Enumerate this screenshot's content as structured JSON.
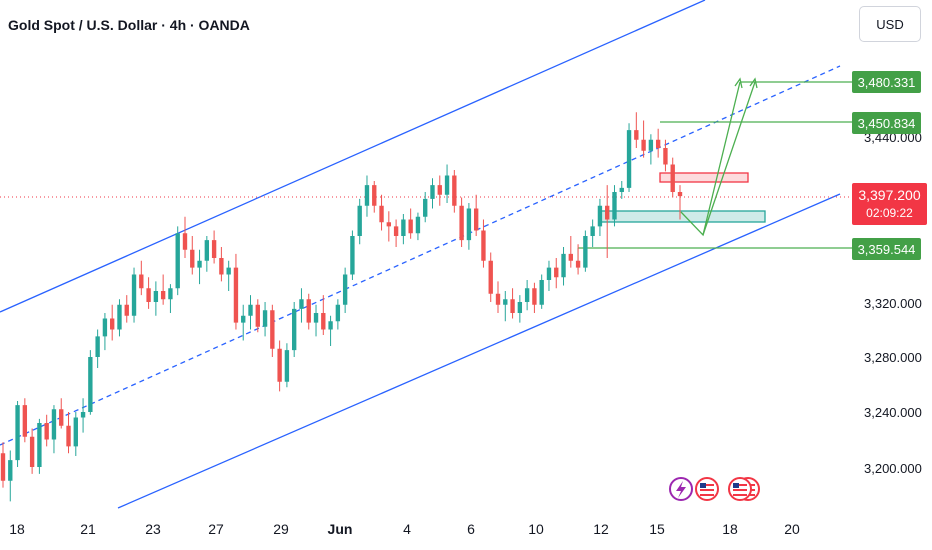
{
  "header": {
    "title": "Gold Spot / U.S. Dollar · 4h · OANDA",
    "currency_button": "USD"
  },
  "price_axis": {
    "ticks": [
      "3,440.000",
      "3,320.000",
      "3,280.000",
      "3,240.000",
      "3,200.000"
    ],
    "levels": [
      "3,480.331",
      "3,450.834",
      "3,359.544"
    ],
    "current_price": "3,397.200",
    "countdown": "02:09:22"
  },
  "time_axis": {
    "ticks": [
      "18",
      "21",
      "23",
      "27",
      "29",
      "Jun",
      "4",
      "6",
      "10",
      "12",
      "15",
      "18",
      "20"
    ]
  },
  "colors": {
    "bull": "#26a69a",
    "bear": "#ef5350",
    "channel": "#2962ff",
    "target": "#4caf50",
    "current": "#f23645"
  },
  "events": [
    "lightning-icon",
    "us-flag-icon",
    "us-flag-icon",
    "us-flag-icon"
  ],
  "chart_data": {
    "type": "candlestick",
    "symbol": "XAUUSD",
    "timeframe": "4h",
    "ylim": [
      3160,
      3520
    ],
    "levels": [
      3480.331,
      3450.834,
      3359.544
    ],
    "current": 3397.2,
    "ohlc": [
      [
        3210,
        3218,
        3185,
        3190
      ],
      [
        3190,
        3212,
        3175,
        3205
      ],
      [
        3205,
        3248,
        3200,
        3245
      ],
      [
        3245,
        3250,
        3218,
        3222
      ],
      [
        3222,
        3228,
        3195,
        3200
      ],
      [
        3200,
        3235,
        3195,
        3232
      ],
      [
        3232,
        3238,
        3215,
        3220
      ],
      [
        3220,
        3245,
        3210,
        3242
      ],
      [
        3242,
        3250,
        3228,
        3230
      ],
      [
        3230,
        3240,
        3210,
        3215
      ],
      [
        3215,
        3240,
        3208,
        3236
      ],
      [
        3236,
        3250,
        3225,
        3240
      ],
      [
        3240,
        3285,
        3238,
        3280
      ],
      [
        3280,
        3300,
        3272,
        3295
      ],
      [
        3295,
        3312,
        3285,
        3308
      ],
      [
        3308,
        3318,
        3292,
        3300
      ],
      [
        3300,
        3322,
        3295,
        3318
      ],
      [
        3318,
        3325,
        3305,
        3310
      ],
      [
        3310,
        3345,
        3305,
        3340
      ],
      [
        3340,
        3350,
        3325,
        3330
      ],
      [
        3330,
        3338,
        3315,
        3320
      ],
      [
        3320,
        3335,
        3310,
        3328
      ],
      [
        3328,
        3340,
        3318,
        3322
      ],
      [
        3322,
        3333,
        3312,
        3330
      ],
      [
        3330,
        3375,
        3325,
        3370
      ],
      [
        3370,
        3382,
        3352,
        3358
      ],
      [
        3358,
        3368,
        3340,
        3345
      ],
      [
        3345,
        3358,
        3333,
        3350
      ],
      [
        3350,
        3368,
        3342,
        3365
      ],
      [
        3365,
        3372,
        3348,
        3352
      ],
      [
        3352,
        3360,
        3335,
        3340
      ],
      [
        3340,
        3350,
        3328,
        3345
      ],
      [
        3345,
        3355,
        3300,
        3305
      ],
      [
        3305,
        3318,
        3292,
        3310
      ],
      [
        3310,
        3325,
        3300,
        3318
      ],
      [
        3318,
        3322,
        3298,
        3302
      ],
      [
        3302,
        3320,
        3295,
        3314
      ],
      [
        3314,
        3318,
        3280,
        3286
      ],
      [
        3286,
        3292,
        3255,
        3262
      ],
      [
        3262,
        3290,
        3258,
        3285
      ],
      [
        3285,
        3320,
        3280,
        3315
      ],
      [
        3315,
        3330,
        3305,
        3322
      ],
      [
        3322,
        3326,
        3300,
        3305
      ],
      [
        3305,
        3318,
        3295,
        3312
      ],
      [
        3312,
        3325,
        3296,
        3300
      ],
      [
        3300,
        3310,
        3288,
        3306
      ],
      [
        3306,
        3322,
        3300,
        3318
      ],
      [
        3318,
        3345,
        3312,
        3340
      ],
      [
        3340,
        3372,
        3336,
        3368
      ],
      [
        3368,
        3395,
        3362,
        3390
      ],
      [
        3390,
        3412,
        3382,
        3405
      ],
      [
        3405,
        3408,
        3385,
        3390
      ],
      [
        3390,
        3398,
        3372,
        3378
      ],
      [
        3378,
        3386,
        3364,
        3375
      ],
      [
        3375,
        3380,
        3360,
        3368
      ],
      [
        3368,
        3384,
        3362,
        3380
      ],
      [
        3380,
        3388,
        3366,
        3370
      ],
      [
        3370,
        3385,
        3365,
        3382
      ],
      [
        3382,
        3400,
        3378,
        3395
      ],
      [
        3395,
        3410,
        3388,
        3405
      ],
      [
        3405,
        3412,
        3390,
        3398
      ],
      [
        3398,
        3420,
        3392,
        3412
      ],
      [
        3412,
        3416,
        3385,
        3390
      ],
      [
        3390,
        3396,
        3360,
        3365
      ],
      [
        3365,
        3392,
        3358,
        3388
      ],
      [
        3388,
        3398,
        3368,
        3372
      ],
      [
        3372,
        3380,
        3345,
        3350
      ],
      [
        3350,
        3356,
        3320,
        3326
      ],
      [
        3326,
        3335,
        3312,
        3318
      ],
      [
        3318,
        3328,
        3306,
        3322
      ],
      [
        3322,
        3330,
        3308,
        3312
      ],
      [
        3312,
        3325,
        3305,
        3320
      ],
      [
        3320,
        3336,
        3314,
        3330
      ],
      [
        3330,
        3334,
        3312,
        3318
      ],
      [
        3318,
        3340,
        3315,
        3336
      ],
      [
        3336,
        3350,
        3328,
        3345
      ],
      [
        3345,
        3352,
        3330,
        3338
      ],
      [
        3338,
        3360,
        3332,
        3355
      ],
      [
        3355,
        3368,
        3345,
        3350
      ],
      [
        3350,
        3362,
        3340,
        3345
      ],
      [
        3345,
        3372,
        3342,
        3368
      ],
      [
        3368,
        3380,
        3360,
        3375
      ],
      [
        3375,
        3395,
        3368,
        3390
      ],
      [
        3390,
        3405,
        3352,
        3380
      ],
      [
        3380,
        3405,
        3375,
        3400
      ],
      [
        3400,
        3408,
        3395,
        3403
      ],
      [
        3403,
        3450,
        3400,
        3445
      ],
      [
        3445,
        3458,
        3432,
        3438
      ],
      [
        3438,
        3452,
        3425,
        3430
      ],
      [
        3430,
        3442,
        3420,
        3438
      ],
      [
        3438,
        3446,
        3425,
        3432
      ],
      [
        3432,
        3438,
        3415,
        3420
      ],
      [
        3420,
        3425,
        3396,
        3400
      ],
      [
        3400,
        3405,
        3380,
        3397
      ]
    ]
  }
}
